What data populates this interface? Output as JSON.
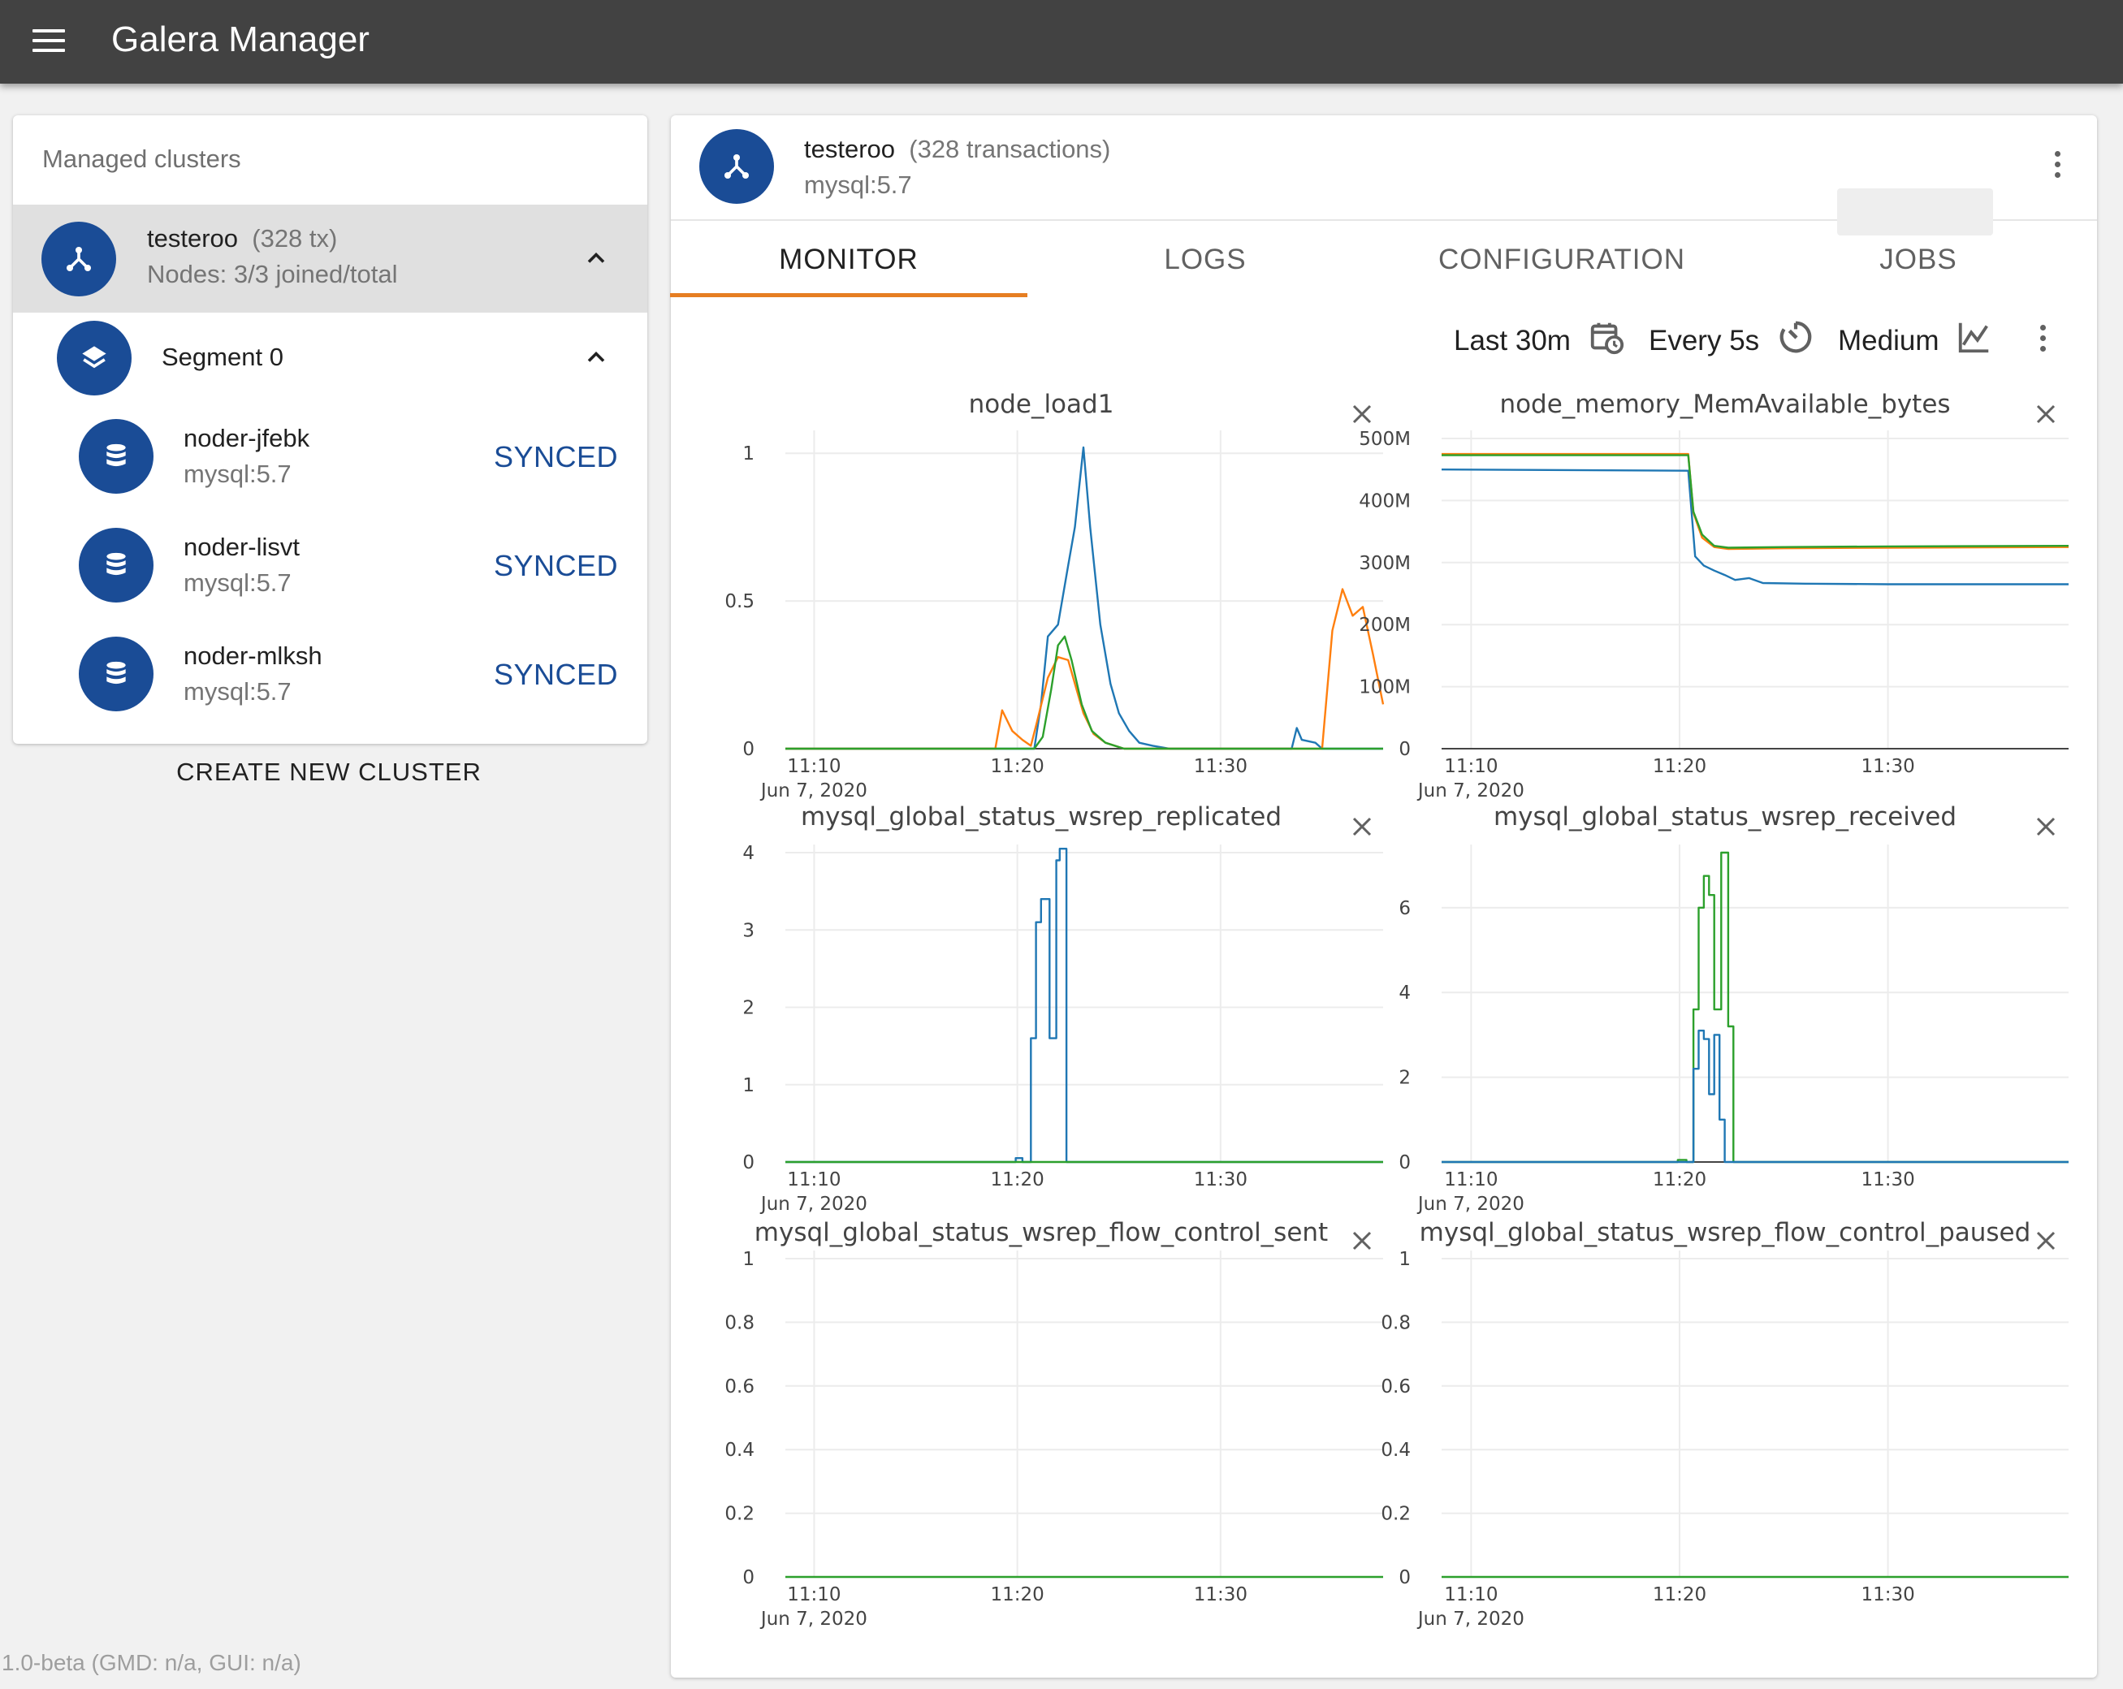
{
  "app": {
    "title": "Galera Manager",
    "version": "1.0-beta (GMD: n/a, GUI: n/a)"
  },
  "sidebar": {
    "header": "Managed clusters",
    "cluster": {
      "name": "testeroo",
      "tx": "(328 tx)",
      "nodes": "Nodes: 3/3 joined/total",
      "icon": "cluster-icon"
    },
    "segment": {
      "name": "Segment 0",
      "icon": "layers-icon"
    },
    "nodes": [
      {
        "name": "noder-jfebk",
        "version": "mysql:5.7",
        "status": "SYNCED",
        "icon": "database-icon"
      },
      {
        "name": "noder-lisvt",
        "version": "mysql:5.7",
        "status": "SYNCED",
        "icon": "database-icon"
      },
      {
        "name": "noder-mlksh",
        "version": "mysql:5.7",
        "status": "SYNCED",
        "icon": "database-icon"
      }
    ],
    "create_button": "CREATE NEW CLUSTER"
  },
  "main": {
    "cluster_name": "testeroo",
    "transactions": "(328 transactions)",
    "version": "mysql:5.7",
    "tabs": [
      {
        "label": "MONITOR",
        "active": true
      },
      {
        "label": "LOGS",
        "active": false
      },
      {
        "label": "CONFIGURATION",
        "active": false
      },
      {
        "label": "JOBS",
        "active": false
      }
    ],
    "controls": {
      "range": "Last 30m",
      "refresh": "Every 5s",
      "size": "Medium"
    }
  },
  "colors": {
    "accent": "#1a4c96",
    "tab_ink": "#e67e22",
    "series": [
      "#1f77b4",
      "#ff7f0e",
      "#2ca02c"
    ]
  },
  "chart_data": [
    {
      "type": "line",
      "title": "node_load1",
      "x_ticks": [
        "11:10",
        "11:20",
        "11:30"
      ],
      "x_date": "Jun 7, 2020",
      "y_ticks": [
        "0",
        "0.5",
        "1"
      ],
      "ylim": [
        0,
        1.05
      ],
      "xlim": [
        "11:08:35",
        "11:38"
      ],
      "series": [
        {
          "color": "#1f77b4",
          "points": [
            [
              "11:08:35",
              0
            ],
            [
              "11:20:50",
              0
            ],
            [
              "11:21:10",
              0.15
            ],
            [
              "11:21:30",
              0.38
            ],
            [
              "11:22:00",
              0.42
            ],
            [
              "11:22:30",
              0.62
            ],
            [
              "11:22:50",
              0.75
            ],
            [
              "11:23:15",
              1.02
            ],
            [
              "11:23:35",
              0.75
            ],
            [
              "11:24:05",
              0.42
            ],
            [
              "11:24:35",
              0.22
            ],
            [
              "11:25:00",
              0.12
            ],
            [
              "11:25:30",
              0.06
            ],
            [
              "11:26:00",
              0.02
            ],
            [
              "11:26:40",
              0.01
            ],
            [
              "11:27:30",
              0
            ],
            [
              "11:33:30",
              0
            ],
            [
              "11:33:45",
              0.07
            ],
            [
              "11:34:00",
              0.03
            ],
            [
              "11:34:40",
              0.02
            ],
            [
              "11:35:00",
              0
            ],
            [
              "11:38",
              0
            ]
          ]
        },
        {
          "color": "#ff7f0e",
          "points": [
            [
              "11:08:35",
              0
            ],
            [
              "11:18:55",
              0
            ],
            [
              "11:19:15",
              0.13
            ],
            [
              "11:19:45",
              0.06
            ],
            [
              "11:20:15",
              0.03
            ],
            [
              "11:20:40",
              0.01
            ],
            [
              "11:21:00",
              0.1
            ],
            [
              "11:21:30",
              0.24
            ],
            [
              "11:22:00",
              0.31
            ],
            [
              "11:22:30",
              0.3
            ],
            [
              "11:22:50",
              0.22
            ],
            [
              "11:23:15",
              0.12
            ],
            [
              "11:23:45",
              0.05
            ],
            [
              "11:24:20",
              0.02
            ],
            [
              "11:25:15",
              0
            ],
            [
              "11:35:00",
              0
            ],
            [
              "11:35:30",
              0.4
            ],
            [
              "11:36:00",
              0.54
            ],
            [
              "11:36:30",
              0.45
            ],
            [
              "11:37:00",
              0.48
            ],
            [
              "11:37:30",
              0.32
            ],
            [
              "11:38",
              0.15
            ]
          ]
        },
        {
          "color": "#2ca02c",
          "points": [
            [
              "11:08:35",
              0
            ],
            [
              "11:20:50",
              0
            ],
            [
              "11:21:15",
              0.04
            ],
            [
              "11:21:40",
              0.2
            ],
            [
              "11:22:00",
              0.35
            ],
            [
              "11:22:20",
              0.38
            ],
            [
              "11:22:40",
              0.3
            ],
            [
              "11:23:10",
              0.15
            ],
            [
              "11:23:40",
              0.06
            ],
            [
              "11:24:20",
              0.02
            ],
            [
              "11:25:15",
              0
            ],
            [
              "11:38",
              0
            ]
          ]
        }
      ]
    },
    {
      "type": "line",
      "title": "node_memory_MemAvailable_bytes",
      "x_ticks": [
        "11:10",
        "11:20",
        "11:30"
      ],
      "x_date": "Jun 7, 2020",
      "y_ticks": [
        "0",
        "100M",
        "200M",
        "300M",
        "400M",
        "500M"
      ],
      "ylim": [
        0,
        500
      ],
      "y_unit": "M",
      "xlim": [
        "11:08:35",
        "11:38:40"
      ],
      "series": [
        {
          "color": "#1f77b4",
          "points": [
            [
              "11:08:35",
              450
            ],
            [
              "11:20:25",
              448
            ],
            [
              "11:20:45",
              310
            ],
            [
              "11:21:10",
              295
            ],
            [
              "11:21:40",
              287
            ],
            [
              "11:22:10",
              280
            ],
            [
              "11:22:40",
              272
            ],
            [
              "11:23:20",
              275
            ],
            [
              "11:24:00",
              267
            ],
            [
              "11:26:00",
              266
            ],
            [
              "11:30:00",
              265
            ],
            [
              "11:38:40",
              265
            ]
          ]
        },
        {
          "color": "#ff7f0e",
          "points": [
            [
              "11:08:35",
              475
            ],
            [
              "11:20:25",
              475
            ],
            [
              "11:20:40",
              380
            ],
            [
              "11:21:05",
              340
            ],
            [
              "11:21:40",
              325
            ],
            [
              "11:22:20",
              322
            ],
            [
              "11:25:00",
              323
            ],
            [
              "11:30:00",
              324
            ],
            [
              "11:38:40",
              325
            ]
          ]
        },
        {
          "color": "#2ca02c",
          "points": [
            [
              "11:08:35",
              473
            ],
            [
              "11:20:25",
              473
            ],
            [
              "11:20:40",
              382
            ],
            [
              "11:21:05",
              345
            ],
            [
              "11:21:40",
              327
            ],
            [
              "11:22:20",
              324
            ],
            [
              "11:25:00",
              325
            ],
            [
              "11:30:00",
              326
            ],
            [
              "11:38:40",
              327
            ]
          ]
        }
      ]
    },
    {
      "type": "line",
      "title": "mysql_global_status_wsrep_replicated",
      "x_ticks": [
        "11:10",
        "11:20",
        "11:30"
      ],
      "x_date": "Jun 7, 2020",
      "y_ticks": [
        "0",
        "1",
        "2",
        "3",
        "4"
      ],
      "ylim": [
        0,
        4
      ],
      "xlim": [
        "11:08:35",
        "11:38"
      ],
      "series": [
        {
          "color": "#1f77b4",
          "points": [
            [
              "11:08:35",
              0
            ],
            [
              "11:19:55",
              0
            ],
            [
              "11:19:55",
              0.05
            ],
            [
              "11:20:15",
              0.05
            ],
            [
              "11:20:15",
              0
            ],
            [
              "11:20:40",
              0
            ],
            [
              "11:20:40",
              1.6
            ],
            [
              "11:20:55",
              1.6
            ],
            [
              "11:20:55",
              3.1
            ],
            [
              "11:21:10",
              3.1
            ],
            [
              "11:21:10",
              3.4
            ],
            [
              "11:21:35",
              3.4
            ],
            [
              "11:21:35",
              1.6
            ],
            [
              "11:21:55",
              1.6
            ],
            [
              "11:21:55",
              3.9
            ],
            [
              "11:22:05",
              3.9
            ],
            [
              "11:22:05",
              4.05
            ],
            [
              "11:22:25",
              4.05
            ],
            [
              "11:22:25",
              0
            ],
            [
              "11:38",
              0
            ]
          ]
        },
        {
          "color": "#2ca02c",
          "points": [
            [
              "11:08:35",
              0
            ],
            [
              "11:38",
              0
            ]
          ]
        }
      ]
    },
    {
      "type": "line",
      "title": "mysql_global_status_wsrep_received",
      "x_ticks": [
        "11:10",
        "11:20",
        "11:30"
      ],
      "x_date": "Jun 7, 2020",
      "y_ticks": [
        "0",
        "2",
        "4",
        "6"
      ],
      "ylim": [
        0,
        7.3
      ],
      "xlim": [
        "11:08:35",
        "11:38:40"
      ],
      "series": [
        {
          "color": "#2ca02c",
          "points": [
            [
              "11:08:35",
              0
            ],
            [
              "11:19:55",
              0
            ],
            [
              "11:19:55",
              0.05
            ],
            [
              "11:20:20",
              0.05
            ],
            [
              "11:20:20",
              0
            ],
            [
              "11:20:40",
              0
            ],
            [
              "11:20:40",
              3.6
            ],
            [
              "11:20:55",
              3.6
            ],
            [
              "11:20:55",
              6.0
            ],
            [
              "11:21:10",
              6.0
            ],
            [
              "11:21:10",
              6.75
            ],
            [
              "11:21:25",
              6.75
            ],
            [
              "11:21:25",
              6.3
            ],
            [
              "11:21:40",
              6.3
            ],
            [
              "11:21:40",
              3.6
            ],
            [
              "11:22:00",
              3.6
            ],
            [
              "11:22:00",
              7.3
            ],
            [
              "11:22:20",
              7.3
            ],
            [
              "11:22:20",
              3.2
            ],
            [
              "11:22:35",
              3.2
            ],
            [
              "11:22:35",
              0
            ],
            [
              "11:38:40",
              0
            ]
          ]
        },
        {
          "color": "#1f77b4",
          "points": [
            [
              "11:08:35",
              0
            ],
            [
              "11:20:40",
              0
            ],
            [
              "11:20:40",
              2.2
            ],
            [
              "11:20:55",
              2.2
            ],
            [
              "11:20:55",
              3.1
            ],
            [
              "11:21:10",
              3.1
            ],
            [
              "11:21:10",
              2.9
            ],
            [
              "11:21:25",
              2.9
            ],
            [
              "11:21:25",
              1.6
            ],
            [
              "11:21:40",
              1.6
            ],
            [
              "11:21:40",
              3.0
            ],
            [
              "11:21:55",
              3.0
            ],
            [
              "11:21:55",
              1.0
            ],
            [
              "11:22:10",
              1.0
            ],
            [
              "11:22:10",
              0
            ],
            [
              "11:38:40",
              0
            ]
          ]
        }
      ]
    },
    {
      "type": "line",
      "title": "mysql_global_status_wsrep_flow_control_sent",
      "x_ticks": [
        "11:10",
        "11:20",
        "11:30"
      ],
      "x_date": "Jun 7, 2020",
      "y_ticks": [
        "0",
        "0.2",
        "0.4",
        "0.6",
        "0.8",
        "1"
      ],
      "ylim": [
        0,
        1
      ],
      "xlim": [
        "11:08:35",
        "11:38"
      ],
      "series": [
        {
          "color": "#2ca02c",
          "points": [
            [
              "11:08:35",
              0
            ],
            [
              "11:38",
              0
            ]
          ]
        }
      ]
    },
    {
      "type": "line",
      "title": "mysql_global_status_wsrep_flow_control_paused",
      "x_ticks": [
        "11:10",
        "11:20",
        "11:30"
      ],
      "x_date": "Jun 7, 2020",
      "y_ticks": [
        "0",
        "0.2",
        "0.4",
        "0.6",
        "0.8",
        "1"
      ],
      "ylim": [
        0,
        1
      ],
      "xlim": [
        "11:08:35",
        "11:38:40"
      ],
      "series": [
        {
          "color": "#2ca02c",
          "points": [
            [
              "11:08:35",
              0
            ],
            [
              "11:38:40",
              0
            ]
          ]
        }
      ]
    }
  ]
}
